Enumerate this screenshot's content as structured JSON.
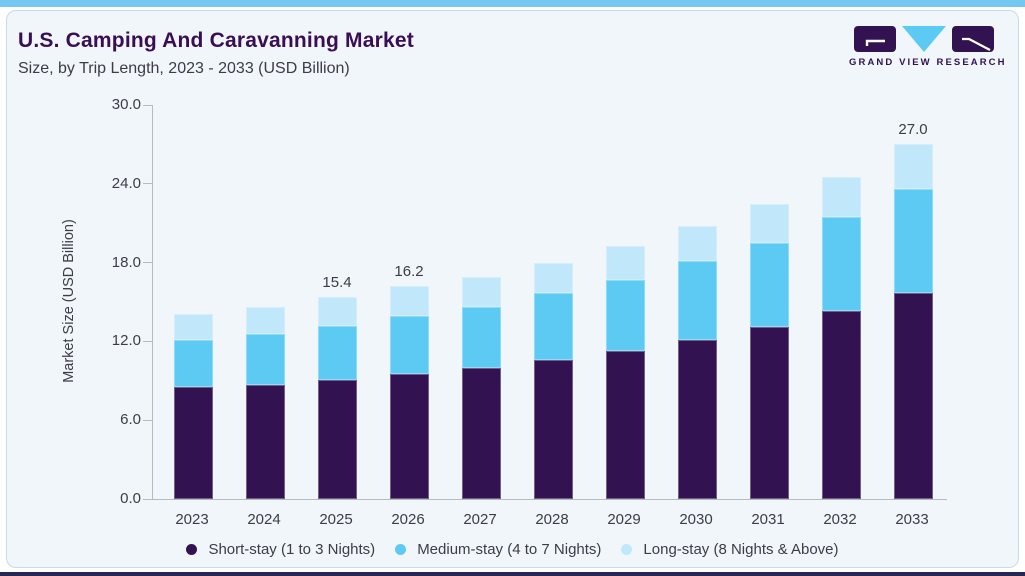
{
  "header": {
    "title": "U.S. Camping And Caravanning Market",
    "subtitle": "Size, by Trip Length, 2023 - 2033 (USD Billion)"
  },
  "logo": {
    "caption": "GRAND VIEW RESEARCH"
  },
  "colors": {
    "top_accent": "#74c7f0",
    "bottom_accent": "#272553",
    "card_background": "#f0f6fa",
    "title_purple": "#390e54",
    "text_dark": "#3d3c47",
    "axis_gray": "#b2bcc4"
  },
  "chart_data": {
    "type": "bar",
    "stacked": true,
    "title": "U.S. Camping And Caravanning Market Size, by Trip Length, 2023 - 2033 (USD Billion)",
    "xlabel": "",
    "ylabel": "Market Size (USD Billion)",
    "categories": [
      "2023",
      "2024",
      "2025",
      "2026",
      "2027",
      "2028",
      "2029",
      "2030",
      "2031",
      "2032",
      "2033"
    ],
    "series": [
      {
        "name": "Short-stay (1 to 3 Nights)",
        "color": "#331251",
        "values": [
          8.5,
          8.7,
          9.1,
          9.5,
          10.0,
          10.6,
          11.3,
          12.1,
          13.1,
          14.3,
          15.7
        ]
      },
      {
        "name": "Medium-stay (4 to 7 Nights)",
        "color": "#5ccaf3",
        "values": [
          3.6,
          3.9,
          4.1,
          4.4,
          4.6,
          5.1,
          5.4,
          6.0,
          6.4,
          7.2,
          7.9
        ]
      },
      {
        "name": "Long-stay (8 Nights & Above)",
        "color": "#c0e8fa",
        "values": [
          2.0,
          2.0,
          2.2,
          2.3,
          2.3,
          2.3,
          2.6,
          2.7,
          3.0,
          3.0,
          3.4
        ]
      }
    ],
    "totals": [
      14.1,
      14.6,
      15.4,
      16.2,
      16.9,
      18.0,
      19.3,
      20.8,
      22.5,
      24.5,
      27.0
    ],
    "bar_labels": [
      "",
      "",
      "15.4",
      "16.2",
      "",
      "",
      "",
      "",
      "",
      "",
      "27.0"
    ],
    "yticks": [
      "0.0",
      "6.0",
      "12.0",
      "18.0",
      "24.0",
      "30.0"
    ],
    "ylim": [
      0,
      30
    ],
    "grid": false,
    "legend_position": "bottom"
  }
}
